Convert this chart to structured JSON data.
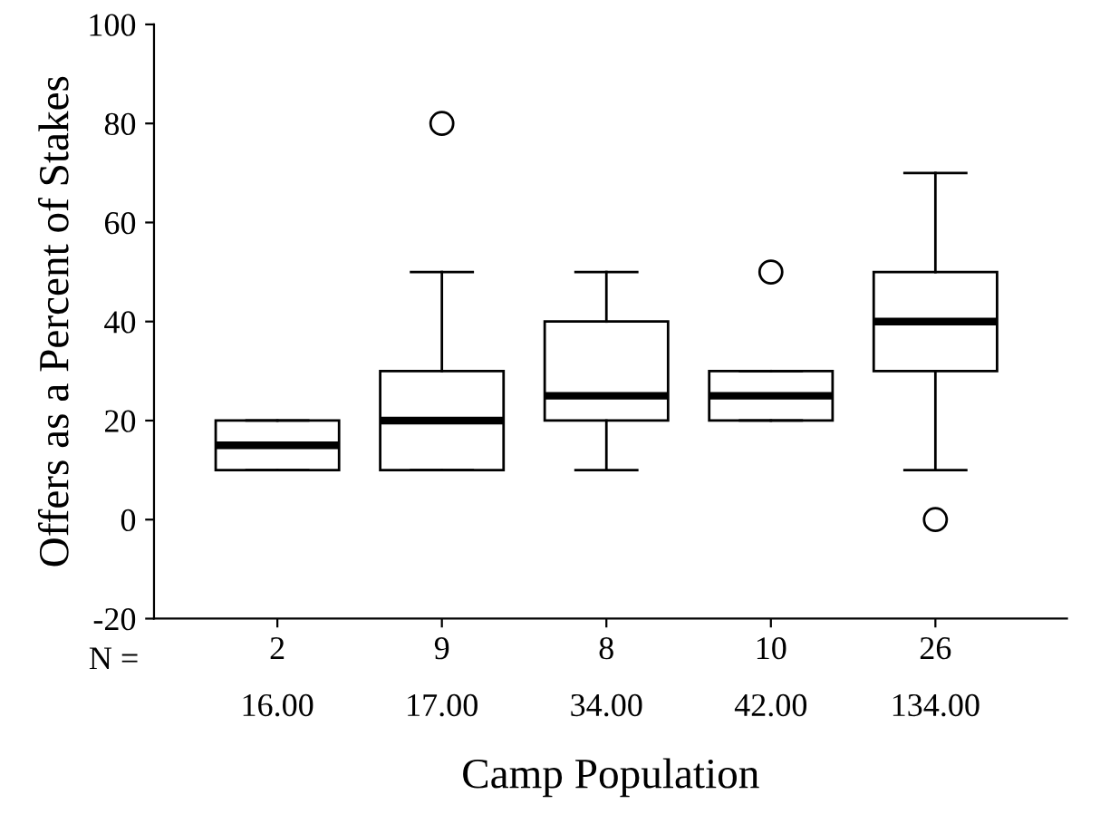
{
  "chart_data": {
    "type": "box",
    "xlabel": "Camp Population",
    "ylabel": "Offers as a Percent of Stakes",
    "categories": [
      "2\n16.00",
      "9\n17.00",
      "8\n34.00",
      "10\n42.00",
      "26\n134.00"
    ],
    "boxes": [
      {
        "low": 10,
        "q1": 10,
        "median": 15,
        "q3": 20,
        "high": 20
      },
      {
        "low": 10,
        "q1": 10,
        "median": 20,
        "q3": 30,
        "high": 50,
        "outliers": [
          80
        ]
      },
      {
        "low": 10,
        "q1": 20,
        "median": 25,
        "q3": 40,
        "high": 50
      },
      {
        "low": 20,
        "q1": 20,
        "median": 25,
        "q3": 30,
        "high": 30,
        "outliers": [
          50
        ]
      },
      {
        "low": 10,
        "q1": 30,
        "median": 40,
        "q3": 50,
        "high": 70,
        "outliers": [
          0
        ]
      }
    ],
    "annotations": [
      "N ="
    ],
    "ylim": [
      -20,
      100
    ],
    "yticks": [
      -20,
      0,
      20,
      40,
      60,
      80,
      100
    ],
    "grid": false,
    "color": "#ffffff"
  }
}
